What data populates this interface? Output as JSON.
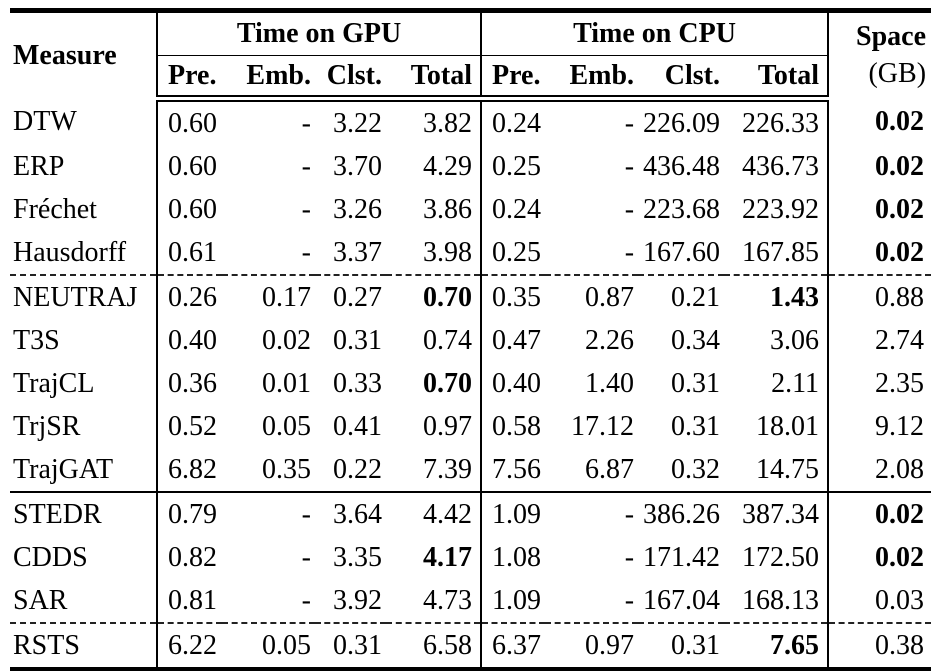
{
  "table": {
    "col_headers": {
      "measure": "Measure",
      "gpu_group": "Time on GPU",
      "cpu_group": "Time on CPU",
      "space_line1": "Space",
      "space_line2": "(GB)",
      "sub": [
        "Pre.",
        "Emb.",
        "Clst.",
        "Total"
      ]
    },
    "rows": [
      {
        "measure": "DTW",
        "gpu": [
          "0.60",
          "-",
          "3.22",
          "3.82"
        ],
        "cpu": [
          "0.24",
          "-",
          "226.09",
          "226.33"
        ],
        "space": "0.02",
        "bold": [
          "space"
        ],
        "sep": "none"
      },
      {
        "measure": "ERP",
        "gpu": [
          "0.60",
          "-",
          "3.70",
          "4.29"
        ],
        "cpu": [
          "0.25",
          "-",
          "436.48",
          "436.73"
        ],
        "space": "0.02",
        "bold": [
          "space"
        ],
        "sep": "none"
      },
      {
        "measure": "Fréchet",
        "gpu": [
          "0.60",
          "-",
          "3.26",
          "3.86"
        ],
        "cpu": [
          "0.24",
          "-",
          "223.68",
          "223.92"
        ],
        "space": "0.02",
        "bold": [
          "space"
        ],
        "sep": "none"
      },
      {
        "measure": "Hausdorff",
        "gpu": [
          "0.61",
          "-",
          "3.37",
          "3.98"
        ],
        "cpu": [
          "0.25",
          "-",
          "167.60",
          "167.85"
        ],
        "space": "0.02",
        "bold": [
          "space"
        ],
        "sep": "none"
      },
      {
        "measure": "NEUTRAJ",
        "gpu": [
          "0.26",
          "0.17",
          "0.27",
          "0.70"
        ],
        "cpu": [
          "0.35",
          "0.87",
          "0.21",
          "1.43"
        ],
        "space": "0.88",
        "bold": [
          "gpu_total",
          "cpu_total"
        ],
        "sep": "dashed"
      },
      {
        "measure": "T3S",
        "gpu": [
          "0.40",
          "0.02",
          "0.31",
          "0.74"
        ],
        "cpu": [
          "0.47",
          "2.26",
          "0.34",
          "3.06"
        ],
        "space": "2.74",
        "bold": [],
        "sep": "none"
      },
      {
        "measure": "TrajCL",
        "gpu": [
          "0.36",
          "0.01",
          "0.33",
          "0.70"
        ],
        "cpu": [
          "0.40",
          "1.40",
          "0.31",
          "2.11"
        ],
        "space": "2.35",
        "bold": [
          "gpu_total"
        ],
        "sep": "none"
      },
      {
        "measure": "TrjSR",
        "gpu": [
          "0.52",
          "0.05",
          "0.41",
          "0.97"
        ],
        "cpu": [
          "0.58",
          "17.12",
          "0.31",
          "18.01"
        ],
        "space": "9.12",
        "bold": [],
        "sep": "none"
      },
      {
        "measure": "TrajGAT",
        "gpu": [
          "6.82",
          "0.35",
          "0.22",
          "7.39"
        ],
        "cpu": [
          "7.56",
          "6.87",
          "0.32",
          "14.75"
        ],
        "space": "2.08",
        "bold": [],
        "sep": "none"
      },
      {
        "measure": "STEDR",
        "gpu": [
          "0.79",
          "-",
          "3.64",
          "4.42"
        ],
        "cpu": [
          "1.09",
          "-",
          "386.26",
          "387.34"
        ],
        "space": "0.02",
        "bold": [
          "space"
        ],
        "sep": "solid"
      },
      {
        "measure": "CDDS",
        "gpu": [
          "0.82",
          "-",
          "3.35",
          "4.17"
        ],
        "cpu": [
          "1.08",
          "-",
          "171.42",
          "172.50"
        ],
        "space": "0.02",
        "bold": [
          "gpu_total",
          "space"
        ],
        "sep": "none"
      },
      {
        "measure": "SAR",
        "gpu": [
          "0.81",
          "-",
          "3.92",
          "4.73"
        ],
        "cpu": [
          "1.09",
          "-",
          "167.04",
          "168.13"
        ],
        "space": "0.03",
        "bold": [],
        "sep": "none"
      },
      {
        "measure": "RSTS",
        "gpu": [
          "6.22",
          "0.05",
          "0.31",
          "6.58"
        ],
        "cpu": [
          "6.37",
          "0.97",
          "0.31",
          "7.65"
        ],
        "space": "0.38",
        "bold": [
          "cpu_total"
        ],
        "sep": "dashed"
      }
    ]
  }
}
